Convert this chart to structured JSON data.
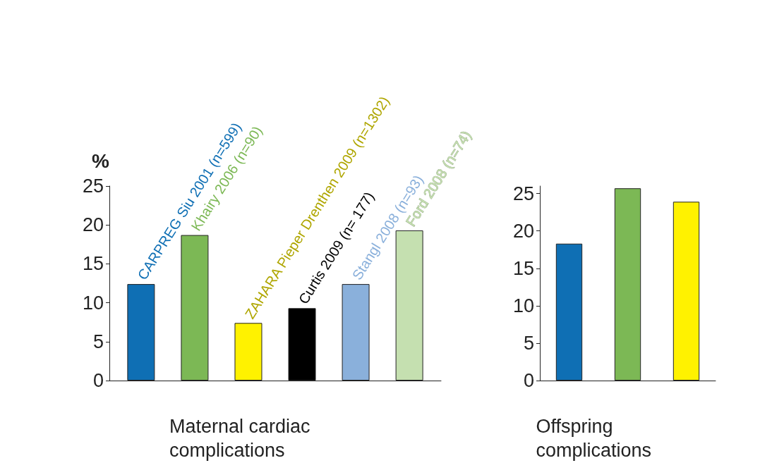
{
  "chart_data": [
    {
      "type": "bar",
      "ylabel": "%",
      "xlabel": "Maternal cardiac complications",
      "categories": [
        null
      ],
      "series": [
        {
          "name": "CARPREG Siu 2001 (n=599)",
          "color": "#0f6fb4",
          "values": [
            12.4
          ]
        },
        {
          "name": "Khairy 2006 (n=90)",
          "color": "#7cb855",
          "values": [
            18.7
          ]
        },
        {
          "name": "ZAHARA Pieper Drenthen 2009 (n=1302)",
          "color": "#fff200",
          "values": [
            7.4
          ]
        },
        {
          "name": "Curtis 2009 (n= 177)",
          "color": "#000000",
          "values": [
            9.3
          ]
        },
        {
          "name": "Stangl 2008 (n=93)",
          "color": "#8ab0db",
          "values": [
            12.4
          ]
        },
        {
          "name": "Ford 2008 (n=74)",
          "color": "#c5e0b0",
          "values": [
            19.3
          ]
        }
      ],
      "ylim": [
        0,
        25
      ],
      "yticks": [
        0,
        5,
        10,
        15,
        20,
        25
      ],
      "grid": false,
      "legend": false
    },
    {
      "type": "bar",
      "xlabel": "Offspring complications",
      "categories": [
        null,
        null,
        null
      ],
      "values": [
        18.3,
        25.7,
        23.9
      ],
      "colors": [
        "#0f6fb4",
        "#7cb855",
        "#fff200"
      ],
      "ylim": [
        0,
        26
      ],
      "yticks": [
        0,
        5,
        10,
        15,
        20,
        25
      ],
      "grid": false,
      "legend": false
    }
  ]
}
